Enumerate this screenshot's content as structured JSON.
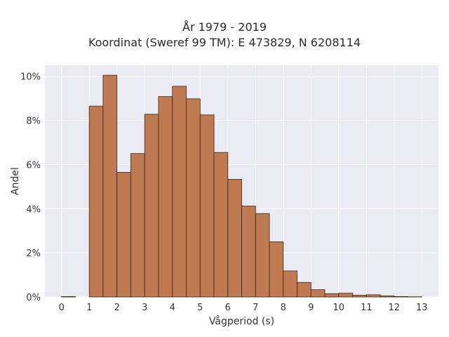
{
  "chart_data": {
    "type": "bar",
    "title": "År 1979 - 2019",
    "subtitle": "Koordinat (Sweref 99 TM): E 473829, N 6208114",
    "xlabel": "Vågperiod (s)",
    "ylabel": "Andel",
    "xlim": [
      -0.6,
      13.6
    ],
    "ylim": [
      0,
      10.5
    ],
    "x_ticks": [
      "0",
      "1",
      "2",
      "3",
      "4",
      "5",
      "6",
      "7",
      "8",
      "9",
      "10",
      "11",
      "12",
      "13"
    ],
    "y_ticks": [
      "0%",
      "2%",
      "4%",
      "6%",
      "8%",
      "10%"
    ],
    "bin_width": 0.5,
    "bin_edges_start": [
      0,
      1,
      1.5,
      2,
      2.5,
      3,
      3.5,
      4,
      4.5,
      5,
      5.5,
      6,
      6.5,
      7,
      7.5,
      8,
      8.5,
      9,
      9.5,
      10,
      10.5,
      11,
      11.5,
      12,
      12.5
    ],
    "values": [
      0.02,
      8.65,
      10.05,
      5.65,
      6.5,
      8.28,
      9.08,
      9.55,
      8.98,
      8.25,
      6.55,
      5.33,
      4.12,
      3.78,
      2.5,
      1.18,
      0.66,
      0.33,
      0.15,
      0.17,
      0.08,
      0.1,
      0.05,
      0.02,
      0.01
    ],
    "grid": true,
    "colors": {
      "bar": "#c07a52",
      "edge": "#3a2418",
      "plot_bg": "#eaeaf2",
      "grid": "#ffffff"
    }
  }
}
